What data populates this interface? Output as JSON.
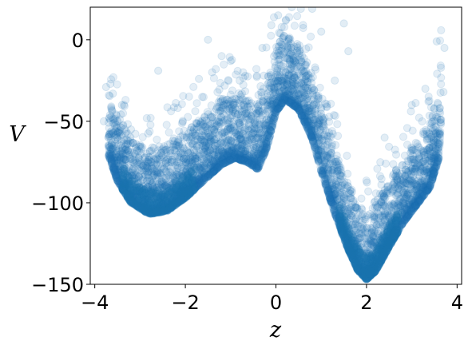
{
  "chart_data": {
    "type": "scatter",
    "title": "",
    "xlabel": "z",
    "ylabel": "V",
    "xlim": [
      -4.1,
      4.1
    ],
    "ylim": [
      -150,
      20
    ],
    "xticks": [
      -4,
      -2,
      0,
      2,
      4
    ],
    "xtick_labels": [
      "−4",
      "−2",
      "0",
      "2",
      "4"
    ],
    "yticks": [
      -150,
      -100,
      -50,
      0
    ],
    "ytick_labels": [
      "−150",
      "−100",
      "−50",
      "0"
    ],
    "grid": false,
    "legend": "none",
    "marker_color": "#1f77b4",
    "marker_alpha": 0.12,
    "series": [
      {
        "description_note": "",
        "lower_envelope": [
          [
            -3.7,
            -72
          ],
          [
            -3.5,
            -88
          ],
          [
            -3.2,
            -101
          ],
          [
            -2.8,
            -108
          ],
          [
            -2.4,
            -106
          ],
          [
            -2.0,
            -98
          ],
          [
            -1.6,
            -88
          ],
          [
            -1.2,
            -78
          ],
          [
            -0.9,
            -74
          ],
          [
            -0.6,
            -77
          ],
          [
            -0.4,
            -81
          ],
          [
            -0.2,
            -68
          ],
          [
            0.0,
            -46
          ],
          [
            0.2,
            -38
          ],
          [
            0.5,
            -44
          ],
          [
            0.8,
            -62
          ],
          [
            1.0,
            -82
          ],
          [
            1.3,
            -108
          ],
          [
            1.6,
            -130
          ],
          [
            1.8,
            -142
          ],
          [
            2.0,
            -148
          ],
          [
            2.2,
            -143
          ],
          [
            2.5,
            -128
          ],
          [
            2.8,
            -114
          ],
          [
            3.1,
            -103
          ],
          [
            3.4,
            -92
          ],
          [
            3.6,
            -74
          ],
          [
            3.65,
            -50
          ]
        ],
        "sparse_upper_points": [
          [
            -3.8,
            -50
          ],
          [
            -3.75,
            -29
          ],
          [
            -3.6,
            -33
          ],
          [
            -3.4,
            -40
          ],
          [
            -3.2,
            -55
          ],
          [
            -2.6,
            -19
          ],
          [
            -1.7,
            -24
          ],
          [
            -1.5,
            0
          ],
          [
            -1.2,
            -10
          ],
          [
            -1.0,
            -13
          ],
          [
            -0.8,
            -25
          ],
          [
            -0.3,
            -5
          ],
          [
            -0.1,
            9
          ],
          [
            0.05,
            15
          ],
          [
            0.1,
            4
          ],
          [
            0.35,
            20
          ],
          [
            0.55,
            19
          ],
          [
            0.8,
            19
          ],
          [
            1.0,
            5
          ],
          [
            1.5,
            10
          ],
          [
            1.6,
            -7
          ],
          [
            1.3,
            -25
          ],
          [
            2.4,
            -60
          ],
          [
            3.0,
            -40
          ],
          [
            3.3,
            -30
          ],
          [
            3.55,
            -1
          ],
          [
            3.72,
            -5
          ],
          [
            3.7,
            -32
          ],
          [
            3.5,
            -42
          ]
        ]
      }
    ]
  }
}
